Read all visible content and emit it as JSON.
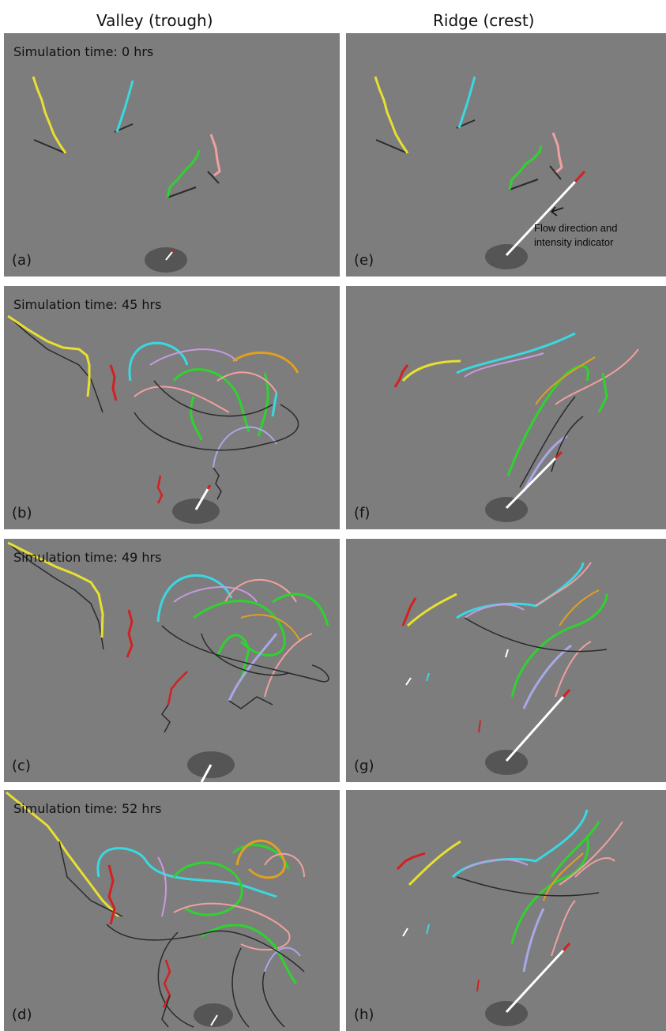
{
  "columns": {
    "left": "Valley (trough)",
    "right": "Ridge (crest)"
  },
  "panels": [
    {
      "label": "(a)",
      "time": "Simulation time: 0 hrs"
    },
    {
      "label": "(b)",
      "time": "Simulation time: 45 hrs"
    },
    {
      "label": "(c)",
      "time": "Simulation time: 49 hrs"
    },
    {
      "label": "(d)",
      "time": "Simulation time: 52 hrs"
    },
    {
      "label": "(e)",
      "time": ""
    },
    {
      "label": "(f)",
      "time": ""
    },
    {
      "label": "(g)",
      "time": ""
    },
    {
      "label": "(h)",
      "time": ""
    }
  ],
  "annotation": {
    "line1": "Flow direction and",
    "line2": "intensity indicator"
  },
  "colors": {
    "background": "#7d7d7d",
    "yellow": "#e8e030",
    "cyan": "#3ad8e0",
    "green": "#2fd22f",
    "pink": "#f0a0a0",
    "red": "#d42020",
    "violet": "#c89ae0",
    "lavender": "#a8a8e8",
    "orange": "#e0a020",
    "shadow": "#2a2a2a",
    "indicator": "#ffffff"
  }
}
